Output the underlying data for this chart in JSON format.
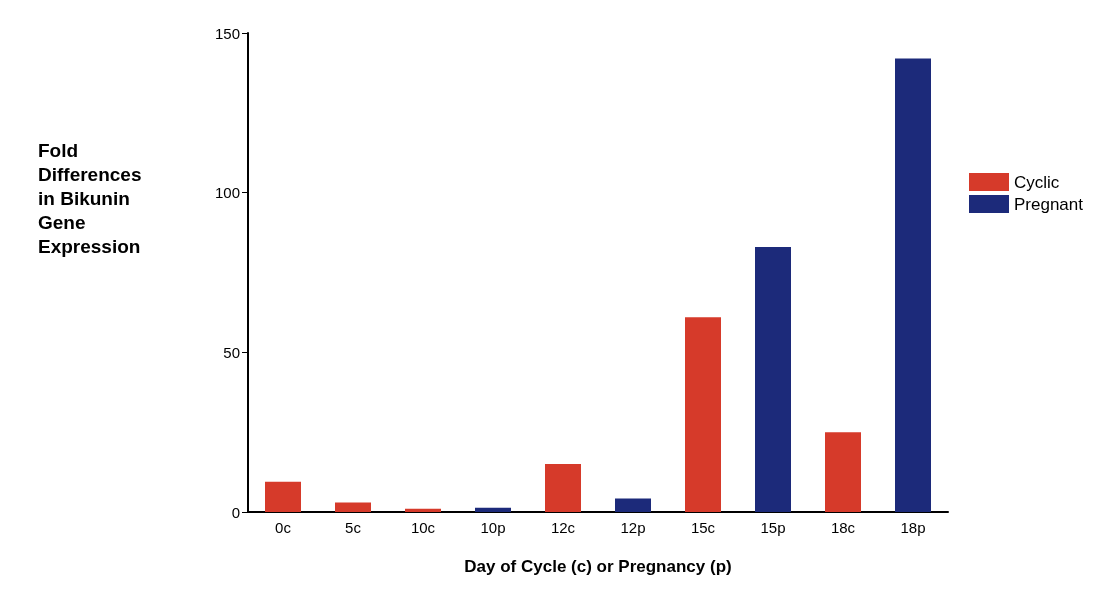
{
  "chart_data": {
    "type": "bar",
    "xlabel": "Day of Cycle (c) or Pregnancy (p)",
    "ylabel": "Fold\nDifferences\nin Bikunin\nGene\nExpression",
    "categories": [
      "0c",
      "5c",
      "10c",
      "10p",
      "12c",
      "12p",
      "15c",
      "15p",
      "18c",
      "18p"
    ],
    "series": [
      {
        "name": "Cyclic",
        "color": "#d63a2a",
        "values": [
          9.5,
          3,
          1,
          null,
          15,
          null,
          61,
          null,
          25,
          null
        ]
      },
      {
        "name": "Pregnant",
        "color": "#1c2a7a",
        "values": [
          null,
          null,
          null,
          1.3,
          null,
          4.2,
          null,
          83,
          null,
          142
        ]
      }
    ],
    "stacked": true,
    "ylim": [
      0,
      150
    ],
    "yticks": [
      0,
      50,
      100,
      150
    ],
    "grid": false,
    "legend": "right"
  }
}
